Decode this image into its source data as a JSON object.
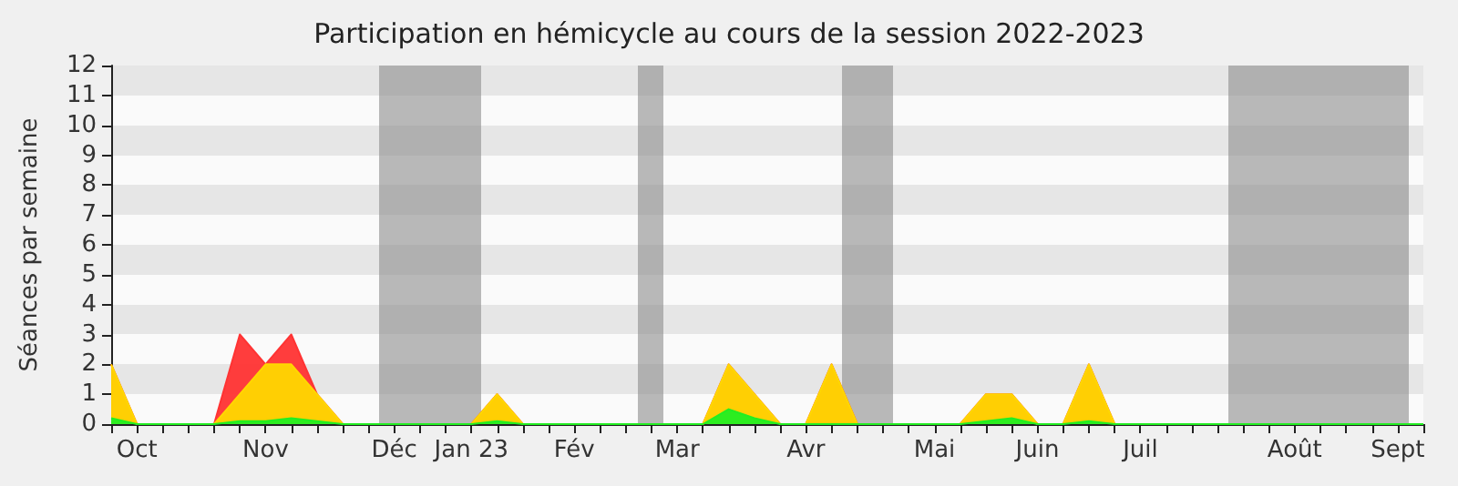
{
  "chart_data": {
    "type": "area",
    "title": "Participation en hémicycle au cours de la session 2022-2023",
    "ylabel": "Séances par semaine",
    "categories": [
      null,
      "Oct",
      null,
      null,
      null,
      null,
      "Nov",
      null,
      null,
      null,
      null,
      "Déc",
      null,
      null,
      "Jan 23",
      null,
      null,
      null,
      "Fév",
      null,
      null,
      null,
      "Mar",
      null,
      null,
      null,
      null,
      "Avr",
      null,
      null,
      null,
      null,
      "Mai",
      null,
      null,
      null,
      "Juin",
      null,
      null,
      null,
      "Juil",
      null,
      null,
      null,
      null,
      null,
      "Août",
      null,
      null,
      null,
      "Sept",
      null
    ],
    "series": [
      {
        "color": "#ff3333",
        "values": [
          2,
          0,
          0,
          0,
          0,
          3,
          2,
          3,
          1,
          0,
          0,
          0,
          0,
          0,
          0,
          1,
          0,
          0,
          0,
          0,
          0,
          0,
          0,
          0,
          2,
          1,
          0,
          0,
          2,
          0,
          0,
          0,
          0,
          0,
          1,
          1,
          0,
          0,
          2,
          0,
          0,
          0,
          0,
          0,
          0,
          0,
          0,
          0,
          0,
          0,
          0,
          0
        ]
      },
      {
        "color": "#ffd700",
        "values": [
          2,
          0,
          0,
          0,
          0,
          1,
          2,
          2,
          1,
          0,
          0,
          0,
          0,
          0,
          0,
          1,
          0,
          0,
          0,
          0,
          0,
          0,
          0,
          0,
          2,
          1,
          0,
          0,
          2,
          0,
          0,
          0,
          0,
          0,
          1,
          1,
          0,
          0,
          2,
          0,
          0,
          0,
          0,
          0,
          0,
          0,
          0,
          0,
          0,
          0,
          0,
          0
        ]
      },
      {
        "color": "#22ee22",
        "values": [
          0.2,
          0,
          0,
          0,
          0,
          0.1,
          0.1,
          0.2,
          0.1,
          0,
          0,
          0,
          0,
          0,
          0,
          0.1,
          0,
          0,
          0,
          0,
          0,
          0,
          0,
          0,
          0.5,
          0.2,
          0,
          0,
          0,
          0,
          0,
          0,
          0,
          0,
          0.1,
          0.2,
          0,
          0,
          0.1,
          0,
          0,
          0,
          0,
          0,
          0,
          0,
          0,
          0,
          0,
          0,
          0,
          0
        ]
      }
    ],
    "ylim": [
      0,
      12
    ],
    "yticks": [
      0,
      1,
      2,
      3,
      4,
      5,
      6,
      7,
      8,
      9,
      10,
      11,
      12
    ],
    "line_style": "solid",
    "marker": "none"
  }
}
